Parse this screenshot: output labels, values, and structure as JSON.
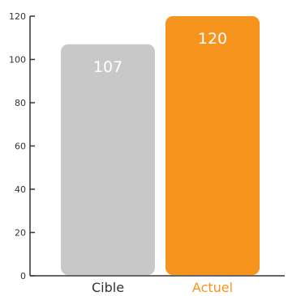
{
  "chart_data": {
    "type": "bar",
    "categories": [
      "Cible",
      "Actuel"
    ],
    "values": [
      107,
      120
    ],
    "title": "",
    "xlabel": "",
    "ylabel": "",
    "ylim": [
      0,
      120
    ],
    "yticks": [
      0,
      20,
      40,
      60,
      80,
      100,
      120
    ],
    "grid": false,
    "bar_colors": [
      "#c8c8c8",
      "#f7941e"
    ],
    "category_label_colors": [
      "#333333",
      "#f7941e"
    ],
    "data_label_color": "#ffffff",
    "axis_color": "#333333"
  }
}
